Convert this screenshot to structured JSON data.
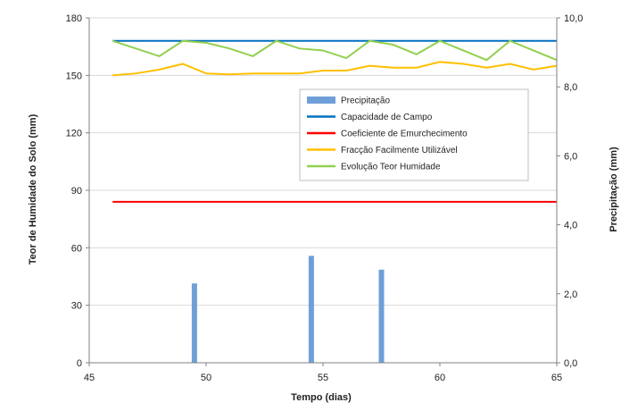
{
  "chart_data": {
    "type": "line",
    "title": "",
    "xlabel": "Tempo (dias)",
    "ylabel_left": "Teor de Humidade do Solo (mm)",
    "ylabel_right": "Precipitação (mm)",
    "xlim": [
      45,
      65
    ],
    "ylim_left": [
      0,
      180
    ],
    "ylim_right": [
      0,
      10
    ],
    "x_ticks": [
      45,
      50,
      55,
      60,
      65
    ],
    "y_left_ticks": [
      0,
      30,
      60,
      90,
      120,
      150,
      180
    ],
    "y_right_ticks": [
      "0,0",
      "2,0",
      "4,0",
      "6,0",
      "8,0",
      "10,0"
    ],
    "y_right_tick_values": [
      0,
      2,
      4,
      6,
      8,
      10
    ],
    "grid": "horizontal",
    "legend_position": "center-right",
    "series": [
      {
        "name": "Precipitação",
        "kind": "bar",
        "axis": "right",
        "color": "#6f9fd8",
        "x": [
          49.5,
          54.5,
          57.5
        ],
        "values": [
          2.3,
          3.1,
          2.7
        ]
      },
      {
        "name": "Capacidade de Campo",
        "kind": "line",
        "axis": "left",
        "color": "#0070c0",
        "x": [
          46,
          65
        ],
        "values": [
          168,
          168
        ]
      },
      {
        "name": "Coeficiente de Emurchecimento",
        "kind": "line",
        "axis": "left",
        "color": "#ff0000",
        "x": [
          46,
          65
        ],
        "values": [
          84,
          84
        ]
      },
      {
        "name": "Fracção Facilmente Utilizável",
        "kind": "line",
        "axis": "left",
        "color": "#ffc000",
        "x": [
          46,
          47,
          48,
          49,
          50,
          51,
          52,
          53,
          54,
          55,
          56,
          57,
          58,
          59,
          60,
          61,
          62,
          63,
          64,
          65
        ],
        "values": [
          150,
          151,
          153,
          156,
          151,
          150.5,
          151,
          151,
          151,
          152.5,
          152.5,
          155,
          154,
          154,
          157,
          156,
          154,
          156,
          153,
          155
        ]
      },
      {
        "name": "Evolução Teor Humidade",
        "kind": "line",
        "axis": "left",
        "color": "#92d050",
        "x": [
          46,
          47,
          48,
          49,
          50,
          51,
          52,
          53,
          54,
          55,
          56,
          57,
          58,
          59,
          60,
          61,
          62,
          63,
          64,
          65
        ],
        "values": [
          168,
          164,
          160,
          168,
          167,
          164,
          160,
          168,
          164,
          163,
          159,
          168,
          166,
          161,
          168,
          163,
          158,
          168,
          163,
          158
        ]
      }
    ]
  }
}
